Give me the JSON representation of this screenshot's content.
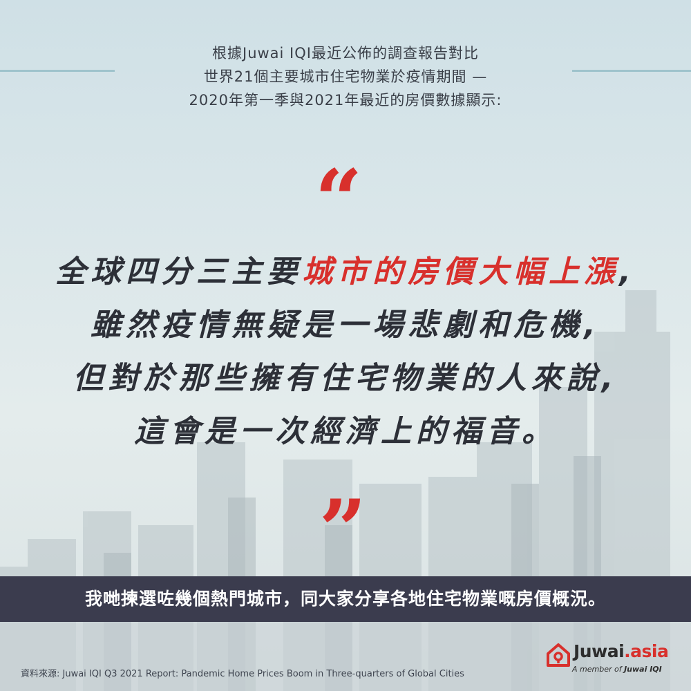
{
  "intro": {
    "line1": "根據Juwai IQI最近公佈的調查報告對比",
    "line2": "世界21個主要城市住宅物業於疫情期間 —",
    "line3": "2020年第一季與2021年最近的房價數據顯示:"
  },
  "quote": {
    "open_mark": "“",
    "close_mark": "”",
    "line1_part1": "全球四分三主要",
    "line1_highlight": "城市的房價大幅上漲",
    "line1_part2": ",",
    "line2": "雖然疫情無疑是一場悲劇和危機,",
    "line3": "但對於那些擁有住宅物業的人來說,",
    "line4": "這會是一次經濟上的福音。"
  },
  "banner": {
    "text": "我哋揀選咗幾個熱門城市，同大家分享各地住宅物業嘅房價概況。"
  },
  "source": {
    "text": "資料來源: Juwai IQI Q3 2021 Report: Pandemic Home Prices Boom in Three-quarters of Global Cities"
  },
  "logo": {
    "name_main": "Juwai",
    "name_suffix": ".asia",
    "tagline_prefix": "A member of ",
    "tagline_brand": "Juwai IQI"
  },
  "colors": {
    "accent": "#d8302c",
    "banner_bg": "#3b3c4e",
    "text_dark": "#2d3038"
  }
}
